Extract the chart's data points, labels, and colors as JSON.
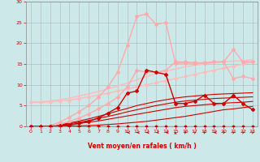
{
  "xlabel": "Vent moyen/en rafales ( km/h )",
  "background_color": "#cce8e8",
  "grid_color": "#aaaaaa",
  "x_values": [
    0,
    1,
    2,
    3,
    4,
    5,
    6,
    7,
    8,
    9,
    10,
    11,
    12,
    13,
    14,
    15,
    16,
    17,
    18,
    19,
    20,
    21,
    22,
    23
  ],
  "lines": [
    {
      "y": [
        0.0,
        0.0,
        0.0,
        0.0,
        0.0,
        0.0,
        0.0,
        0.0,
        0.0,
        0.0,
        0.0,
        0.0,
        0.0,
        0.0,
        0.0,
        0.0,
        0.0,
        0.0,
        0.0,
        0.0,
        0.0,
        0.0,
        0.0,
        0.0
      ],
      "color": "#cc0000",
      "lw": 0.8,
      "marker": "D",
      "markersize": 1.5,
      "zorder": 5
    },
    {
      "y": [
        0.0,
        0.0,
        0.0,
        0.0,
        0.05,
        0.1,
        0.2,
        0.3,
        0.45,
        0.6,
        0.8,
        1.0,
        1.2,
        1.5,
        1.8,
        2.1,
        2.4,
        2.8,
        3.2,
        3.6,
        4.0,
        4.2,
        4.5,
        4.8
      ],
      "color": "#cc0000",
      "lw": 0.8,
      "marker": null,
      "markersize": 0,
      "zorder": 3
    },
    {
      "y": [
        0.0,
        0.0,
        0.05,
        0.2,
        0.4,
        0.7,
        1.0,
        1.3,
        1.7,
        2.1,
        2.5,
        2.9,
        3.3,
        3.7,
        4.1,
        4.5,
        4.8,
        5.0,
        5.2,
        5.4,
        5.6,
        5.7,
        5.8,
        6.0
      ],
      "color": "#cc0000",
      "lw": 0.8,
      "marker": null,
      "markersize": 0,
      "zorder": 3
    },
    {
      "y": [
        0.0,
        0.0,
        0.1,
        0.3,
        0.6,
        1.0,
        1.4,
        1.9,
        2.4,
        2.9,
        3.5,
        4.0,
        4.5,
        5.0,
        5.4,
        5.8,
        6.1,
        6.3,
        6.5,
        6.7,
        6.8,
        6.9,
        7.0,
        7.1
      ],
      "color": "#cc0000",
      "lw": 0.8,
      "marker": null,
      "markersize": 0,
      "zorder": 3
    },
    {
      "y": [
        0.0,
        0.0,
        0.1,
        0.4,
        0.8,
        1.3,
        1.8,
        2.4,
        3.0,
        3.7,
        4.3,
        5.0,
        5.5,
        6.0,
        6.4,
        6.8,
        7.1,
        7.3,
        7.5,
        7.7,
        7.8,
        7.9,
        8.0,
        8.1
      ],
      "color": "#cc0000",
      "lw": 0.8,
      "marker": null,
      "markersize": 0,
      "zorder": 3
    },
    {
      "y": [
        5.8,
        5.8,
        5.9,
        6.1,
        6.3,
        6.7,
        7.1,
        7.5,
        8.0,
        8.5,
        9.0,
        9.5,
        10.0,
        10.5,
        11.0,
        11.5,
        12.0,
        12.5,
        13.0,
        13.5,
        14.0,
        14.5,
        15.0,
        15.5
      ],
      "color": "#ffbbbb",
      "lw": 1.0,
      "marker": "D",
      "markersize": 1.8,
      "zorder": 4
    },
    {
      "y": [
        5.8,
        5.9,
        6.1,
        6.4,
        6.8,
        7.3,
        7.8,
        8.4,
        9.0,
        9.7,
        10.4,
        11.2,
        12.0,
        12.7,
        13.3,
        13.8,
        14.3,
        14.7,
        15.0,
        15.3,
        15.5,
        15.7,
        15.8,
        16.0
      ],
      "color": "#ffbbbb",
      "lw": 1.0,
      "marker": null,
      "markersize": 0,
      "zorder": 4
    },
    {
      "y": [
        0.0,
        0.0,
        0.1,
        0.5,
        1.2,
        2.0,
        3.0,
        4.2,
        5.5,
        7.0,
        9.5,
        13.5,
        13.0,
        13.0,
        13.5,
        15.5,
        15.5,
        15.3,
        15.3,
        15.5,
        15.5,
        18.5,
        15.5,
        15.5
      ],
      "color": "#ffaaaa",
      "lw": 1.0,
      "marker": "D",
      "markersize": 2.0,
      "zorder": 4
    },
    {
      "y": [
        0.0,
        0.0,
        0.2,
        1.0,
        2.2,
        3.5,
        5.0,
        7.0,
        9.5,
        13.0,
        19.5,
        26.5,
        27.0,
        24.5,
        25.0,
        15.2,
        15.2,
        15.2,
        15.2,
        15.5,
        15.5,
        11.5,
        12.0,
        11.5
      ],
      "color": "#ffaaaa",
      "lw": 1.0,
      "marker": "D",
      "markersize": 2.0,
      "zorder": 4
    },
    {
      "y": [
        0.0,
        0.0,
        0.0,
        0.1,
        0.3,
        0.7,
        1.2,
        2.0,
        3.2,
        4.5,
        8.0,
        8.5,
        13.5,
        13.0,
        12.5,
        5.5,
        5.5,
        6.0,
        7.5,
        5.5,
        5.5,
        7.5,
        5.5,
        4.0
      ],
      "color": "#cc0000",
      "lw": 1.0,
      "marker": "D",
      "markersize": 2.0,
      "zorder": 5
    }
  ],
  "wind_arrows": {
    "x": [
      10,
      11,
      12,
      13,
      14,
      15,
      16,
      17,
      18,
      19,
      20,
      21,
      22,
      23
    ],
    "angles": [
      270,
      270,
      270,
      260,
      270,
      0,
      45,
      45,
      45,
      270,
      45,
      45,
      45,
      45
    ]
  },
  "ylim": [
    0,
    30
  ],
  "xlim": [
    -0.5,
    23.5
  ],
  "yticks": [
    0,
    5,
    10,
    15,
    20,
    25,
    30
  ],
  "xticks": [
    0,
    1,
    2,
    3,
    4,
    5,
    6,
    7,
    8,
    9,
    10,
    11,
    12,
    13,
    14,
    15,
    16,
    17,
    18,
    19,
    20,
    21,
    22,
    23
  ]
}
